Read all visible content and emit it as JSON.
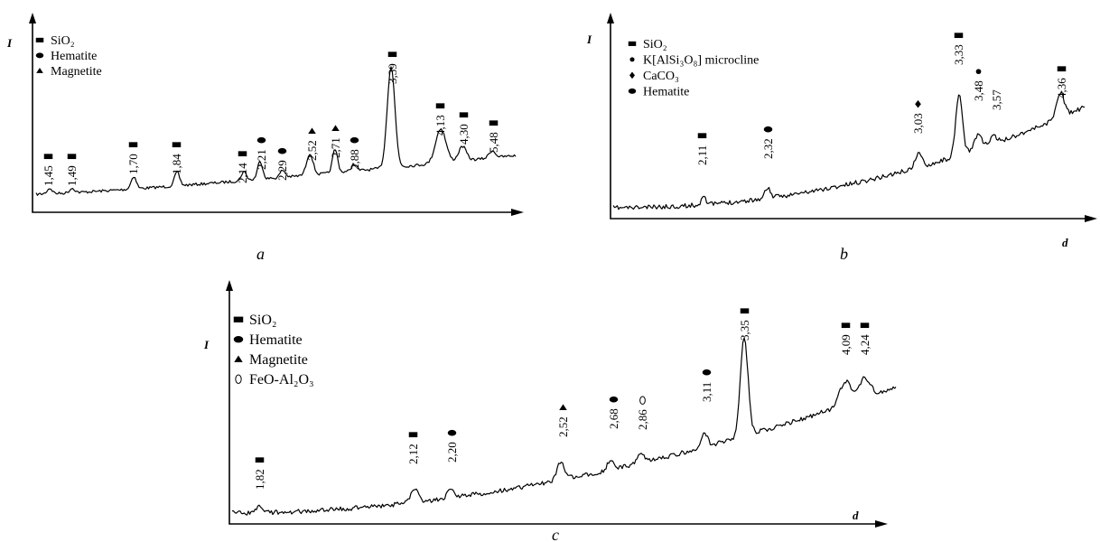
{
  "chart_data": [
    {
      "type": "line",
      "caption": "a",
      "ylabel": "I",
      "xlabel": "",
      "legend": [
        {
          "marker": "square",
          "label": "SiO₂"
        },
        {
          "marker": "circle",
          "label": "Hematite"
        },
        {
          "marker": "triangle",
          "label": "Magnetite"
        }
      ],
      "peaks": [
        {
          "d": "1,45",
          "marker": "square"
        },
        {
          "d": "1,49",
          "marker": "square"
        },
        {
          "d": "1,70",
          "marker": "square"
        },
        {
          "d": "1,84",
          "marker": "square"
        },
        {
          "d": "2,14",
          "marker": "square"
        },
        {
          "d": "2,21",
          "marker": "circle"
        },
        {
          "d": "2,29",
          "marker": "circle"
        },
        {
          "d": "2,52",
          "marker": "triangle"
        },
        {
          "d": "2,71",
          "marker": "triangle"
        },
        {
          "d": "2,88",
          "marker": "circle"
        },
        {
          "d": "3,39",
          "marker": "square"
        },
        {
          "d": "4,13",
          "marker": "square"
        },
        {
          "d": "4,30",
          "marker": "square"
        },
        {
          "d": "5,48",
          "marker": "square"
        }
      ]
    },
    {
      "type": "line",
      "caption": "b",
      "ylabel": "I",
      "xlabel": "d",
      "legend": [
        {
          "marker": "square",
          "label": "SiO₂"
        },
        {
          "marker": "dot",
          "label": "K[AlSi₃O₈] microcline"
        },
        {
          "marker": "diamond",
          "label": "CaCO₃"
        },
        {
          "marker": "circle",
          "label": "Hematite"
        }
      ],
      "peaks": [
        {
          "d": "2,11",
          "marker": "square"
        },
        {
          "d": "2,32",
          "marker": "circle"
        },
        {
          "d": "3,03",
          "marker": "diamond"
        },
        {
          "d": "3,33",
          "marker": "square"
        },
        {
          "d": "3,48",
          "marker": "dot"
        },
        {
          "d": "3,57",
          "marker": ""
        },
        {
          "d": "4,36",
          "marker": "square"
        }
      ]
    },
    {
      "type": "line",
      "caption": "c",
      "ylabel": "I",
      "xlabel": "d",
      "legend": [
        {
          "marker": "square",
          "label": "SiO₂"
        },
        {
          "marker": "circle",
          "label": "Hematite"
        },
        {
          "marker": "triangle",
          "label": "Magnetite"
        },
        {
          "marker": "diamond-open",
          "label": "FeO-Al₂O₃"
        }
      ],
      "peaks": [
        {
          "d": "1,82",
          "marker": "square"
        },
        {
          "d": "2,12",
          "marker": "square"
        },
        {
          "d": "2,20",
          "marker": "circle"
        },
        {
          "d": "2,52",
          "marker": "triangle"
        },
        {
          "d": "2,68",
          "marker": "circle"
        },
        {
          "d": "2,86",
          "marker": "diamond-open"
        },
        {
          "d": "3,11",
          "marker": "circle"
        },
        {
          "d": "3,35",
          "marker": "square"
        },
        {
          "d": "4,09",
          "marker": "square"
        },
        {
          "d": "4,24",
          "marker": "square"
        }
      ]
    }
  ]
}
